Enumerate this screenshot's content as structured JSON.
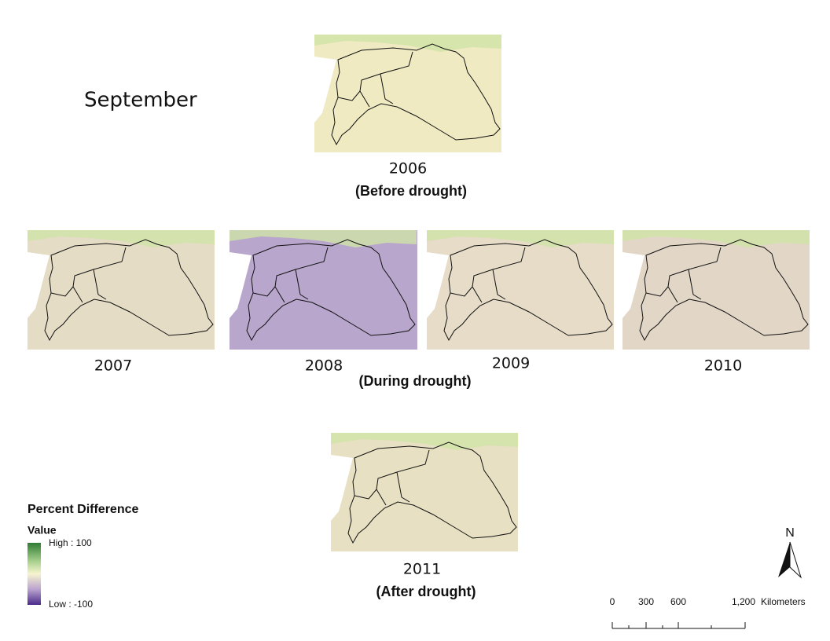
{
  "title": "September",
  "panels": [
    {
      "year": "2006"
    },
    {
      "year": "2007"
    },
    {
      "year": "2008"
    },
    {
      "year": "2009"
    },
    {
      "year": "2010"
    },
    {
      "year": "2011"
    }
  ],
  "captions": {
    "before": "(Before drought)",
    "during": "(During drought)",
    "after": "(After drought)"
  },
  "legend": {
    "title": "Percent Difference",
    "field": "Value",
    "high": "High : 100",
    "low": "Low : -100"
  },
  "north_arrow": "N",
  "scale_bar": {
    "labels": [
      "0",
      "300",
      "600",
      "1,200"
    ],
    "unit": "Kilometers"
  }
}
